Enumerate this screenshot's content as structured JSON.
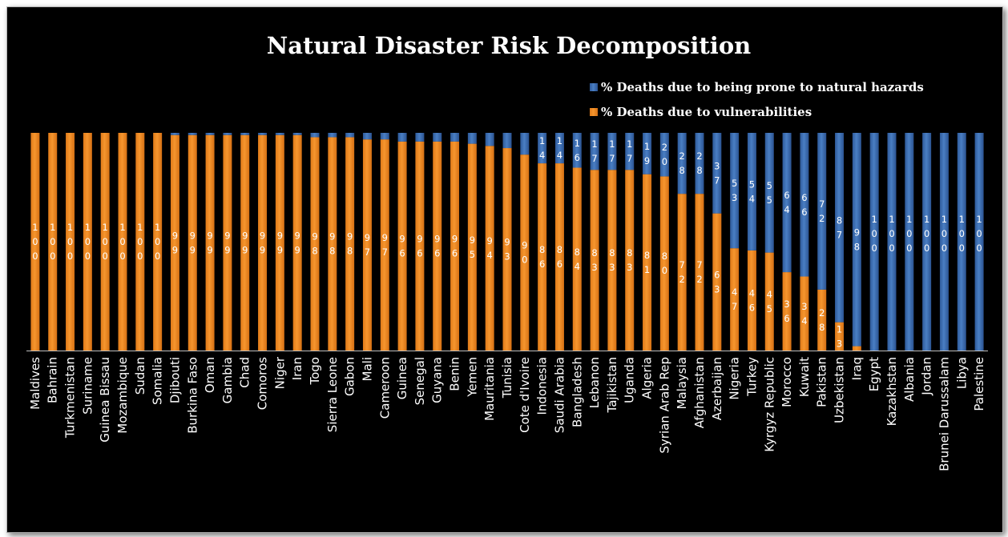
{
  "chart_data": {
    "type": "bar",
    "stacked": true,
    "percent": true,
    "title": "Natural Disaster Risk Decomposition",
    "xlabel": "",
    "ylabel": "",
    "ylim": [
      0,
      100
    ],
    "grid": false,
    "legend_position": "top-right",
    "background_color": "#000000",
    "categories": [
      "Maldives",
      "Bahrain",
      "Turkmenistan",
      "Suriname",
      "Guinea Bissau",
      "Mozambique",
      "Sudan",
      "Somalia",
      "Djibouti",
      "Burkina Faso",
      "Oman",
      "Gambia",
      "Chad",
      "Comoros",
      "Niger",
      "Iran",
      "Togo",
      "Sierra Leone",
      "Gabon",
      "Mali",
      "Cameroon",
      "Guinea",
      "Senegal",
      "Guyana",
      "Benin",
      "Yemen",
      "Mauritania",
      "Tunisia",
      "Cote d'Ivoire",
      "Indonesia",
      "Saudi Arabia",
      "Bangladesh",
      "Lebanon",
      "Tajikistan",
      "Uganda",
      "Algeria",
      "Syrian Arab Rep",
      "Malaysia",
      "Afghanistan",
      "Azerbaijan",
      "Nigeria",
      "Turkey",
      "Kyrgyz Republic",
      "Morocco",
      "Kuwait",
      "Pakistan",
      "Uzbekistan",
      "Iraq",
      "Egypt",
      "Kazakhstan",
      "Albania",
      "Jordan",
      "Brunei Darussalam",
      "Libya",
      "Palestine"
    ],
    "series": [
      {
        "name": "% Deaths due to being prone to natural hazards",
        "color": "#3d6fb5",
        "values": [
          0,
          0,
          0,
          0,
          0,
          0,
          0,
          0,
          1,
          1,
          1,
          1,
          1,
          1,
          1,
          1,
          2,
          2,
          2,
          3,
          3,
          4,
          4,
          4,
          4,
          5,
          6,
          7,
          10,
          14,
          14,
          16,
          17,
          17,
          17,
          19,
          20,
          28,
          28,
          37,
          53,
          54,
          55,
          64,
          66,
          72,
          87,
          98,
          100,
          100,
          100,
          100,
          100,
          100,
          100
        ],
        "labels": [
          "",
          "",
          "",
          "",
          "",
          "",
          "",
          "",
          "",
          "",
          "",
          "",
          "",
          "",
          "",
          "",
          "",
          "",
          "",
          "",
          "",
          "",
          "",
          "",
          "",
          "",
          "",
          "",
          "",
          "14",
          "14",
          "16",
          "17",
          "17",
          "17",
          "19",
          "20",
          "28",
          "28",
          "37",
          "53",
          "54",
          "55",
          "64",
          "66",
          "72",
          "87",
          "98",
          "",
          "",
          "",
          "",
          "",
          "",
          ""
        ]
      },
      {
        "name": "% Deaths due to vulnerabilities",
        "color": "#f08a24",
        "values": [
          100,
          100,
          100,
          100,
          100,
          100,
          100,
          100,
          99,
          99,
          99,
          99,
          99,
          99,
          99,
          99,
          98,
          98,
          98,
          97,
          97,
          96,
          96,
          96,
          96,
          95,
          94,
          93,
          90,
          86,
          86,
          84,
          83,
          83,
          83,
          81,
          80,
          72,
          72,
          63,
          47,
          46,
          45,
          36,
          34,
          28,
          13,
          2,
          0,
          0,
          0,
          0,
          0,
          0,
          0
        ],
        "labels": [
          "100",
          "100",
          "100",
          "100",
          "100",
          "100",
          "100",
          "100",
          "99",
          "99",
          "99",
          "99",
          "99",
          "99",
          "99",
          "99",
          "98",
          "98",
          "98",
          "97",
          "97",
          "96",
          "96",
          "96",
          "96",
          "95",
          "94",
          "93",
          "90",
          "86",
          "86",
          "84",
          "83",
          "83",
          "83",
          "81",
          "80",
          "72",
          "72",
          "63",
          "47",
          "46",
          "45",
          "36",
          "34",
          "28",
          "13",
          "",
          "",
          "",
          "",
          "",
          "",
          "",
          ""
        ]
      }
    ],
    "data_labels_extra": [
      "",
      "",
      "",
      "",
      "",
      "",
      "",
      "",
      "",
      "",
      "",
      "",
      "",
      "",
      "",
      "",
      "",
      "",
      "",
      "",
      "",
      "",
      "",
      "",
      "",
      "",
      "",
      "",
      "",
      "",
      "",
      "",
      "",
      "",
      "",
      "",
      "",
      "",
      "",
      "",
      "",
      "",
      "",
      "",
      "",
      "",
      "",
      "",
      "100",
      "100",
      "100",
      "100",
      "100",
      "100",
      "100"
    ]
  }
}
